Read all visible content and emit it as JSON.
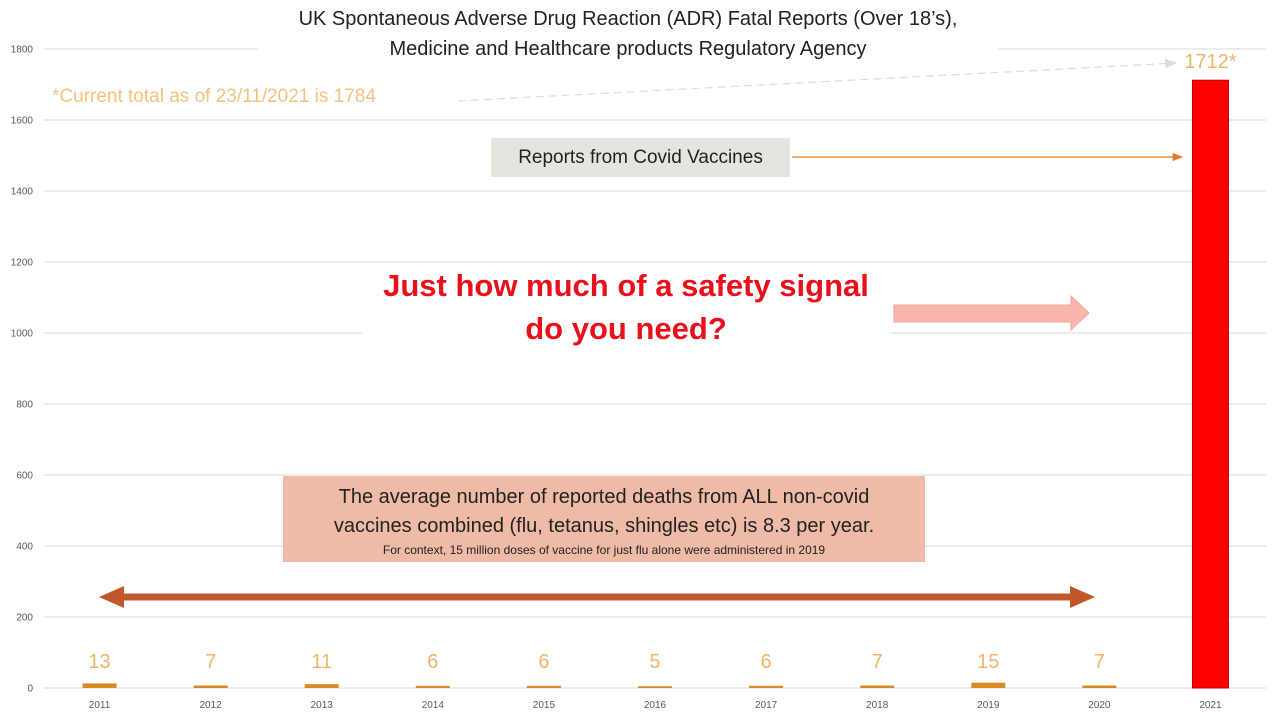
{
  "chart_data": {
    "type": "bar",
    "title": "UK Spontaneous Adverse Drug Reaction (ADR) Fatal Reports (Over 18’s),",
    "subtitle": "Medicine and Healthcare products Regulatory Agency",
    "categories": [
      "2011",
      "2012",
      "2013",
      "2014",
      "2015",
      "2016",
      "2017",
      "2018",
      "2019",
      "2020",
      "2021"
    ],
    "values": [
      13,
      7,
      11,
      6,
      6,
      5,
      6,
      7,
      15,
      7,
      1712
    ],
    "data_labels": [
      "13",
      "7",
      "11",
      "6",
      "6",
      "5",
      "6",
      "7",
      "15",
      "7",
      "1712*"
    ],
    "ylim": [
      0,
      1800
    ],
    "yticks": [
      0,
      200,
      400,
      600,
      800,
      1000,
      1200,
      1400,
      1600,
      1800
    ],
    "xlabel": "",
    "ylabel": "",
    "grid": true,
    "legend": "none",
    "colors": {
      "bar": "#d98a23",
      "highlight_bar": "#ff0000",
      "highlight_bar_edge": "#c00000",
      "data_label": "#f0b46a",
      "gridline": "#d9d9d9",
      "tick_label": "#595959",
      "double_arrow": "#c0582b",
      "pink_arrow": "#f8b7ac",
      "pointer_arrow": "#e07b1f"
    }
  },
  "annotations": {
    "current_total_note": "*Current total as of 23/11/2021 is 1784",
    "covid_label": "Reports from Covid Vaccines",
    "headline_line1": "Just how much of a safety signal",
    "headline_line2": "do you need?",
    "average_line1": "The average number of reported deaths from ALL non-covid",
    "average_line2": "vaccines combined (flu, tetanus, shingles etc) is 8.3 per year.",
    "context_note": "For context, 15 million doses of vaccine for just flu alone were administered in 2019"
  }
}
